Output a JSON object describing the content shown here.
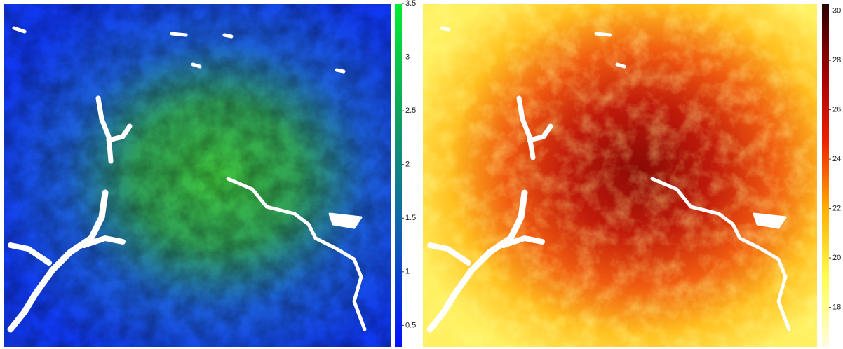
{
  "maps": [
    {
      "colorbar": {
        "lim": [
          0.3,
          3.5
        ],
        "ticks": [
          0.5,
          1,
          1.5,
          2,
          2.5,
          3,
          3.5
        ],
        "colors": [
          "#0010ff",
          "#1060b0",
          "#10a060",
          "#00ee30"
        ]
      }
    },
    {
      "colorbar": {
        "lim": [
          16.4,
          30.3
        ],
        "ticks": [
          18,
          20,
          22,
          24,
          26,
          28,
          30
        ],
        "colors": [
          "#fffbe0",
          "#ffff50",
          "#ffb000",
          "#ee2000",
          "#a00000",
          "#2a0000"
        ]
      }
    }
  ]
}
